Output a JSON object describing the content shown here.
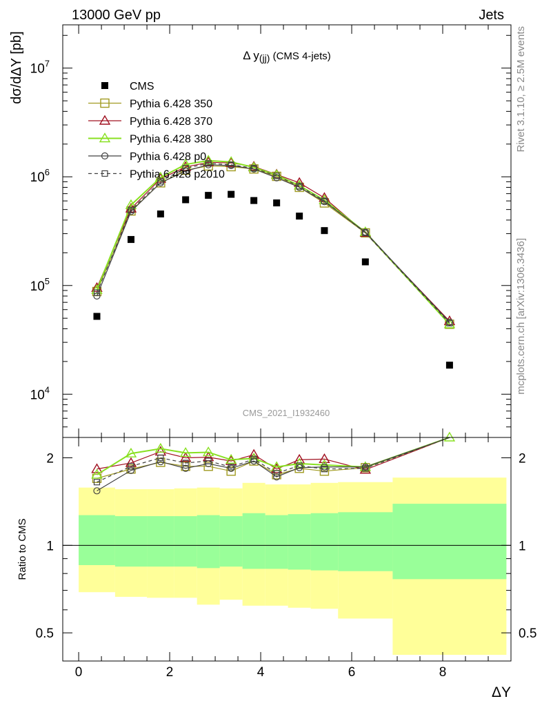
{
  "header": {
    "left": "13000 GeV pp",
    "right": "Jets"
  },
  "side_labels": {
    "rivet": "Rivet 3.1.10, ≥ 2.5M events",
    "mcplots": "mcplots.cern.ch [arXiv:1306.3436]"
  },
  "watermark": "CMS_2021_I1932460",
  "chart_data": [
    {
      "type": "scatter",
      "panel": "main",
      "title_main": "Δ y",
      "title_sub": "(jj)",
      "title_rest": " (CMS 4-jets)",
      "ylabel": "dσ/dΔY [pb]",
      "yscale": "log",
      "ylim": [
        4000,
        25000000
      ],
      "xlim": [
        -0.35,
        9.5
      ],
      "ytick_labels": [
        {
          "base": "10",
          "exp": "4",
          "value": 10000
        },
        {
          "base": "10",
          "exp": "5",
          "value": 100000
        },
        {
          "base": "10",
          "exp": "6",
          "value": 1000000
        },
        {
          "base": "10",
          "exp": "7",
          "value": 10000000
        }
      ],
      "x": [
        0.4,
        1.15,
        1.8,
        2.35,
        2.85,
        3.35,
        3.85,
        4.35,
        4.85,
        5.4,
        6.3,
        8.15
      ],
      "series": [
        {
          "name": "CMS",
          "color": "#000000",
          "marker": "filled-square",
          "values": [
            52000,
            265000,
            455000,
            615000,
            675000,
            690000,
            605000,
            575000,
            435000,
            320000,
            165000,
            18500
          ]
        },
        {
          "name": "Pythia 6.428 350",
          "color": "#a09a20",
          "marker": "open-square",
          "dash": "",
          "values": [
            88000,
            485000,
            880000,
            1150000,
            1260000,
            1240000,
            1180000,
            1010000,
            800000,
            575000,
            305000,
            44000
          ]
        },
        {
          "name": "Pythia 6.428 370",
          "color": "#a01020",
          "marker": "open-triangle",
          "dash": "",
          "values": [
            95000,
            510000,
            960000,
            1230000,
            1360000,
            1340000,
            1240000,
            1050000,
            880000,
            640000,
            305000,
            47000
          ]
        },
        {
          "name": "Pythia 6.428 380",
          "color": "#88e020",
          "marker": "open-triangle",
          "dash": "",
          "values": [
            91000,
            550000,
            985000,
            1300000,
            1410000,
            1370000,
            1220000,
            1040000,
            830000,
            610000,
            310000,
            44000
          ]
        },
        {
          "name": "Pythia 6.428 p0",
          "color": "#404040",
          "marker": "open-circle",
          "dash": "",
          "values": [
            80000,
            480000,
            880000,
            1130000,
            1290000,
            1270000,
            1180000,
            980000,
            800000,
            590000,
            310000,
            46000
          ]
        },
        {
          "name": "Pythia 6.428 p2010",
          "color": "#404040",
          "marker": "open-square-small",
          "dash": "5,4",
          "values": [
            86000,
            495000,
            910000,
            1200000,
            1330000,
            1290000,
            1200000,
            1020000,
            820000,
            600000,
            305000,
            45000
          ]
        }
      ]
    },
    {
      "type": "line",
      "panel": "ratio",
      "ylabel": "Ratio to CMS",
      "xlabel": "ΔY",
      "yscale": "log",
      "ylim": [
        0.4,
        2.35
      ],
      "xlim": [
        -0.35,
        9.5
      ],
      "xticks": [
        0,
        2,
        4,
        6,
        8
      ],
      "ytick_labels": [
        "0.5",
        "1",
        "2"
      ],
      "ytick_values": [
        0.5,
        1,
        2
      ],
      "bands": {
        "bin_edges": [
          0,
          0.8,
          1.5,
          2.1,
          2.6,
          3.1,
          3.6,
          4.1,
          4.6,
          5.1,
          5.7,
          6.9,
          9.4
        ],
        "outer": {
          "color": "#ffff99",
          "low": [
            0.69,
            0.665,
            0.66,
            0.66,
            0.625,
            0.65,
            0.62,
            0.62,
            0.61,
            0.605,
            0.56,
            0.42
          ],
          "high": [
            1.58,
            1.56,
            1.56,
            1.57,
            1.58,
            1.57,
            1.64,
            1.62,
            1.62,
            1.64,
            1.65,
            1.71
          ]
        },
        "inner": {
          "color": "#99ff99",
          "low": [
            0.855,
            0.845,
            0.845,
            0.845,
            0.835,
            0.845,
            0.83,
            0.83,
            0.825,
            0.82,
            0.815,
            0.765
          ],
          "high": [
            1.27,
            1.26,
            1.26,
            1.26,
            1.27,
            1.26,
            1.29,
            1.27,
            1.28,
            1.29,
            1.3,
            1.39
          ]
        }
      },
      "x": [
        0.4,
        1.15,
        1.8,
        2.35,
        2.85,
        3.35,
        3.85,
        4.35,
        4.85,
        5.4,
        6.3,
        8.15
      ],
      "series": [
        {
          "name": "Pythia 6.428 350",
          "values": [
            1.7,
            1.83,
            1.93,
            1.87,
            1.87,
            1.8,
            1.95,
            1.75,
            1.84,
            1.8,
            1.85,
            2.38
          ]
        },
        {
          "name": "Pythia 6.428 370",
          "values": [
            1.83,
            1.92,
            2.1,
            2.0,
            2.01,
            1.95,
            2.05,
            1.83,
            1.97,
            1.98,
            1.82,
            2.5
          ]
        },
        {
          "name": "Pythia 6.428 380",
          "values": [
            1.75,
            2.07,
            2.15,
            2.08,
            2.09,
            1.97,
            1.99,
            1.86,
            1.91,
            1.89,
            1.86,
            2.35
          ]
        },
        {
          "name": "Pythia 6.428 p0",
          "values": [
            1.54,
            1.81,
            1.94,
            1.84,
            1.91,
            1.84,
            1.95,
            1.72,
            1.85,
            1.86,
            1.86,
            2.45
          ]
        },
        {
          "name": "Pythia 6.428 p2010",
          "values": [
            1.65,
            1.87,
            2.0,
            1.92,
            1.95,
            1.86,
            1.98,
            1.77,
            1.88,
            1.83,
            1.84,
            2.4
          ]
        }
      ]
    }
  ]
}
